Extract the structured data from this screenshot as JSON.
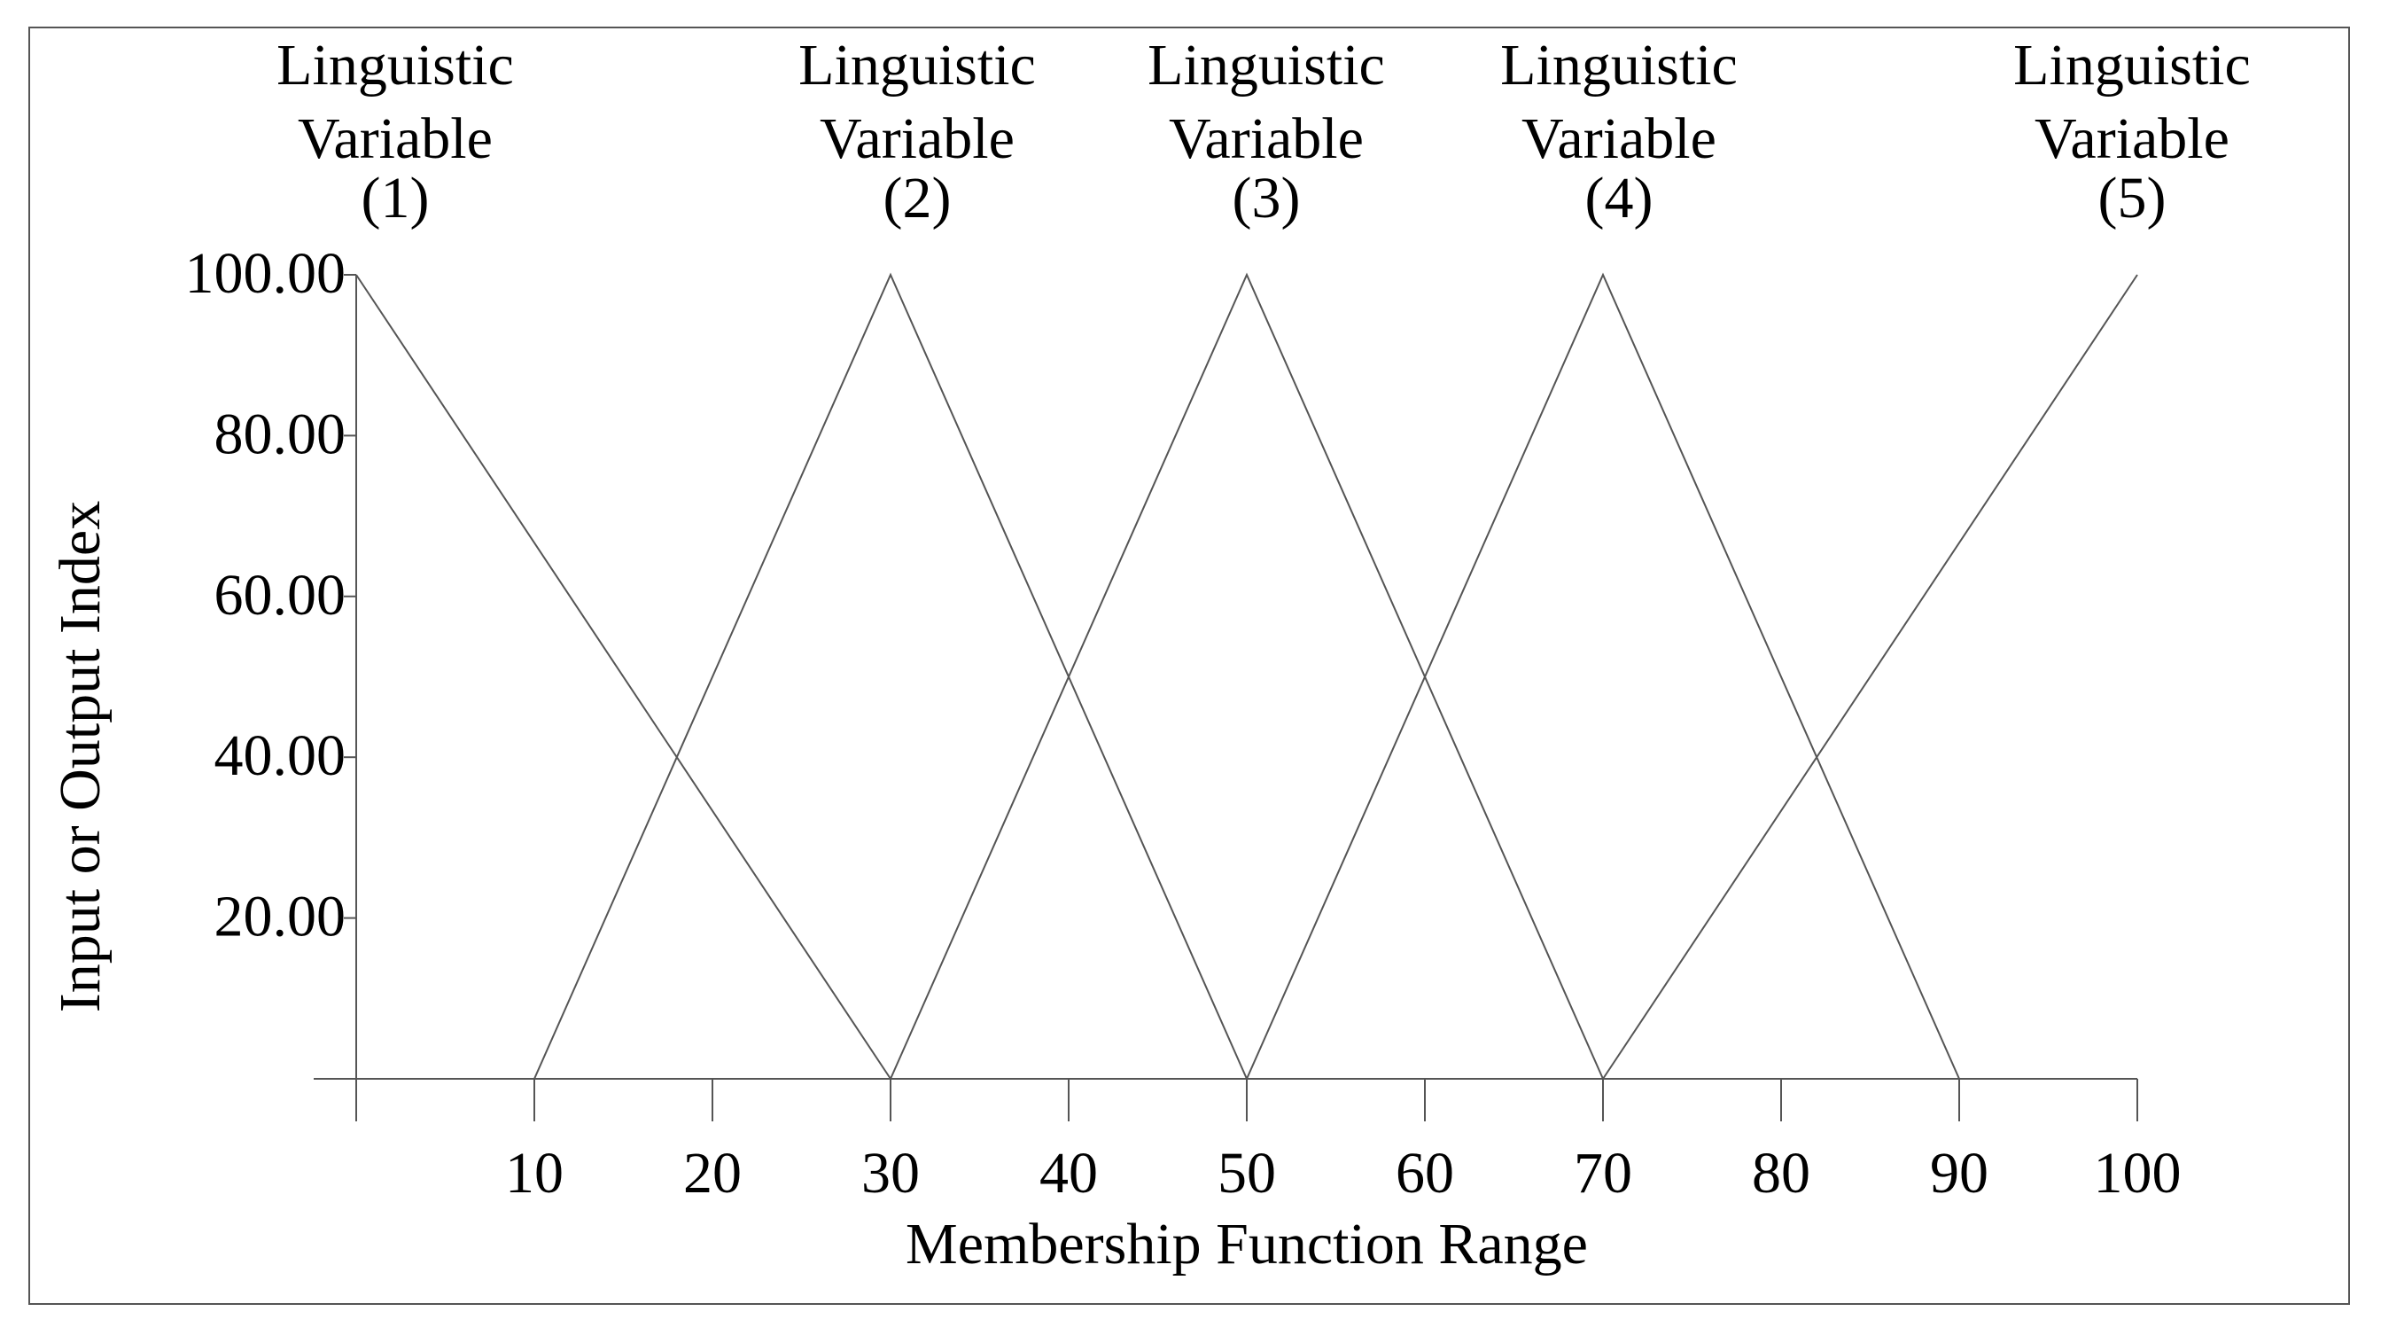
{
  "chart_data": {
    "type": "line",
    "xlabel": "Membership Function Range",
    "ylabel": "Input or Output Index",
    "xlim": [
      0,
      100
    ],
    "ylim": [
      0,
      100
    ],
    "x_ticks": [
      0,
      10,
      20,
      30,
      40,
      50,
      60,
      70,
      80,
      90,
      100
    ],
    "x_tick_labels": [
      "",
      "10",
      "20",
      "30",
      "40",
      "50",
      "60",
      "70",
      "80",
      "90",
      "100"
    ],
    "y_ticks": [
      20,
      40,
      60,
      80,
      100
    ],
    "y_tick_labels": [
      "20.00",
      "40.00",
      "60.00",
      "80.00",
      "100.00"
    ],
    "grid": false,
    "series": [
      {
        "label_lines": [
          "Linguistic",
          "Variable",
          "(1)"
        ],
        "peak_x": 0,
        "x": [
          0,
          30
        ],
        "y": [
          100,
          0
        ]
      },
      {
        "label_lines": [
          "Linguistic",
          "Variable",
          "(2)"
        ],
        "peak_x": 30,
        "x": [
          10,
          30,
          50
        ],
        "y": [
          0,
          100,
          0
        ]
      },
      {
        "label_lines": [
          "Linguistic",
          "Variable",
          "(3)"
        ],
        "peak_x": 50,
        "x": [
          30,
          50,
          70
        ],
        "y": [
          0,
          100,
          0
        ]
      },
      {
        "label_lines": [
          "Linguistic",
          "Variable",
          "(4)"
        ],
        "peak_x": 70,
        "x": [
          50,
          70,
          90
        ],
        "y": [
          0,
          100,
          0
        ]
      },
      {
        "label_lines": [
          "Linguistic",
          "Variable",
          "(5)"
        ],
        "peak_x": 100,
        "x": [
          70,
          100
        ],
        "y": [
          0,
          100
        ]
      }
    ],
    "colors": {
      "line": "#555555",
      "text": "#000000",
      "frame": "#555555"
    }
  }
}
